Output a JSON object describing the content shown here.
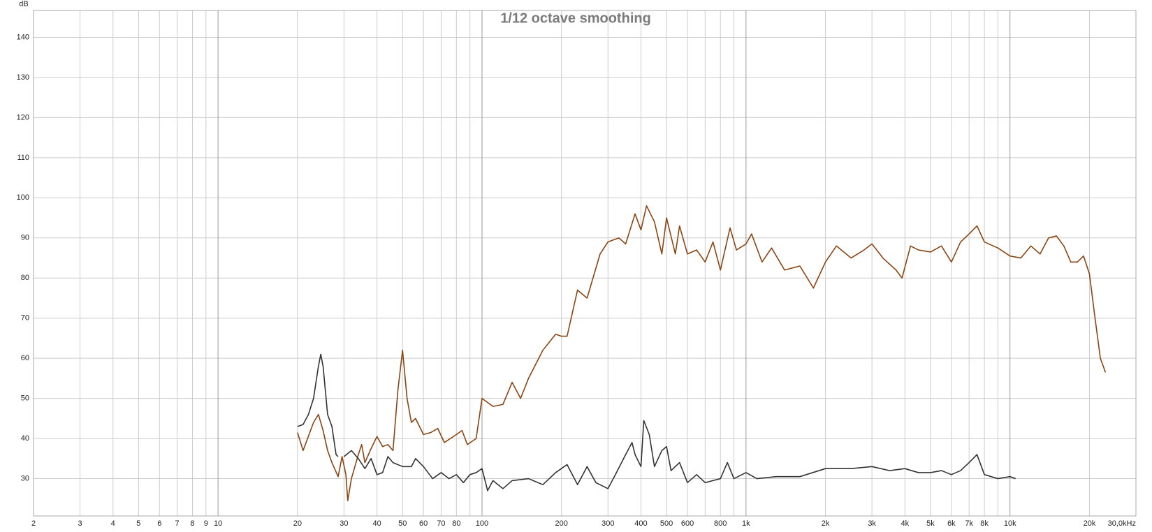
{
  "chart_data": {
    "type": "line",
    "title": "1/12 octave smoothing",
    "y_label": "dB",
    "xscale": "log",
    "grid": true,
    "xlim": [
      2,
      30000
    ],
    "ylim": [
      20.7,
      146.7
    ],
    "yticks": [
      30,
      40,
      50,
      60,
      70,
      80,
      90,
      100,
      110,
      120,
      130,
      140
    ],
    "xticks": [
      2,
      3,
      4,
      5,
      6,
      7,
      8,
      9,
      10,
      20,
      30,
      40,
      50,
      60,
      70,
      80,
      {
        "value": 90,
        "label": null
      },
      100,
      200,
      300,
      400,
      500,
      600,
      {
        "value": 700,
        "label": null
      },
      800,
      {
        "value": 900,
        "label": null
      },
      {
        "value": 1000,
        "label": "1k"
      },
      {
        "value": 2000,
        "label": "2k"
      },
      {
        "value": 3000,
        "label": "3k"
      },
      {
        "value": 4000,
        "label": "4k"
      },
      {
        "value": 5000,
        "label": "5k"
      },
      {
        "value": 6000,
        "label": "6k"
      },
      {
        "value": 7000,
        "label": "7k"
      },
      {
        "value": 8000,
        "label": "8k"
      },
      {
        "value": 9000,
        "label": null
      },
      {
        "value": 10000,
        "label": "10k"
      },
      {
        "value": 20000,
        "label": "20k"
      },
      {
        "value": 30000,
        "label": "30,0kHz"
      }
    ],
    "series": [
      {
        "color": "#8b4513",
        "x": [
          20,
          21,
          23,
          24,
          25,
          26,
          27,
          28.5,
          29.5,
          30.5,
          31,
          32,
          34,
          35,
          36,
          38,
          40,
          42,
          44,
          46,
          48,
          50,
          52,
          54,
          56,
          60,
          64,
          68,
          72,
          80,
          84,
          88,
          95,
          100,
          110,
          120,
          130,
          140,
          150,
          170,
          190,
          200,
          210,
          230,
          250,
          280,
          300,
          330,
          350,
          380,
          400,
          420,
          450,
          480,
          500,
          540,
          560,
          600,
          650,
          700,
          750,
          800,
          870,
          920,
          1000,
          1050,
          1150,
          1250,
          1400,
          1600,
          1800,
          2000,
          2200,
          2500,
          2800,
          3000,
          3300,
          3700,
          3900,
          4200,
          4500,
          5000,
          5500,
          6000,
          6500,
          7000,
          7500,
          8000,
          9000,
          10000,
          11000,
          12000,
          13000,
          14000,
          15000,
          16000,
          17000,
          18000,
          19000,
          20000,
          21000,
          22000,
          23000
        ],
        "values": [
          41.5,
          37,
          44,
          46,
          42,
          37,
          34,
          30.5,
          35.5,
          31,
          24.5,
          30,
          36,
          38.5,
          34,
          37.5,
          40.5,
          38,
          38.5,
          37,
          52,
          62,
          50,
          44,
          45,
          41,
          41.5,
          42.5,
          39,
          41,
          42,
          38.5,
          40,
          50,
          48,
          48.5,
          54,
          50,
          55,
          62,
          66,
          65.5,
          65.5,
          77,
          75,
          86,
          89,
          90,
          88.5,
          96,
          92,
          98,
          94,
          86,
          95,
          86,
          93,
          86,
          87,
          84,
          89,
          82,
          92.5,
          87,
          88.5,
          91,
          84,
          87.5,
          82,
          83,
          77.5,
          84,
          88,
          85,
          87,
          88.5,
          85,
          82,
          80,
          88,
          87,
          86.5,
          88,
          84,
          89,
          91,
          93,
          89,
          87.5,
          85.5,
          85,
          88,
          86,
          90,
          90.5,
          88,
          84,
          84,
          85.5,
          81,
          70,
          60,
          56.5
        ]
      },
      {
        "color": "#333333",
        "x": [
          20,
          21,
          22,
          23,
          24,
          24.5,
          25,
          26,
          27,
          28,
          28.5,
          29.2,
          30,
          32,
          34,
          36,
          38,
          40,
          42,
          44,
          46,
          50,
          54,
          56,
          60,
          65,
          70,
          75,
          80,
          85,
          90,
          95,
          100,
          105,
          110,
          120,
          130,
          150,
          170,
          190,
          210,
          230,
          250,
          270,
          300,
          320,
          350,
          370,
          380,
          400,
          410,
          430,
          450,
          480,
          500,
          520,
          560,
          600,
          650,
          700,
          800,
          850,
          900,
          1000,
          1100,
          1300,
          1600,
          2000,
          2500,
          3000,
          3500,
          4000,
          4500,
          5000,
          5500,
          6000,
          6500,
          7000,
          7500,
          8000,
          9000,
          10000,
          10500
        ],
        "values": [
          43,
          43.5,
          46,
          50,
          58,
          61,
          58,
          46,
          43,
          36,
          35.5,
          null,
          35.5,
          37,
          35,
          32.5,
          35,
          31,
          31.5,
          35.5,
          34,
          33,
          33,
          35,
          33,
          30,
          31.5,
          30,
          31,
          29,
          31,
          31.5,
          32.5,
          27,
          29.5,
          27.5,
          29.5,
          30,
          28.5,
          31.5,
          33.5,
          28.5,
          33,
          29,
          27.5,
          31,
          36,
          39,
          36,
          33,
          44.5,
          41,
          33,
          37,
          38,
          32,
          34,
          29,
          31,
          29,
          30,
          34,
          30,
          31.5,
          30,
          30.5,
          30.5,
          32.5,
          32.5,
          33,
          32,
          32.5,
          31.5,
          31.5,
          32,
          31,
          32,
          34,
          36,
          31,
          30,
          30.5,
          30
        ]
      }
    ]
  }
}
